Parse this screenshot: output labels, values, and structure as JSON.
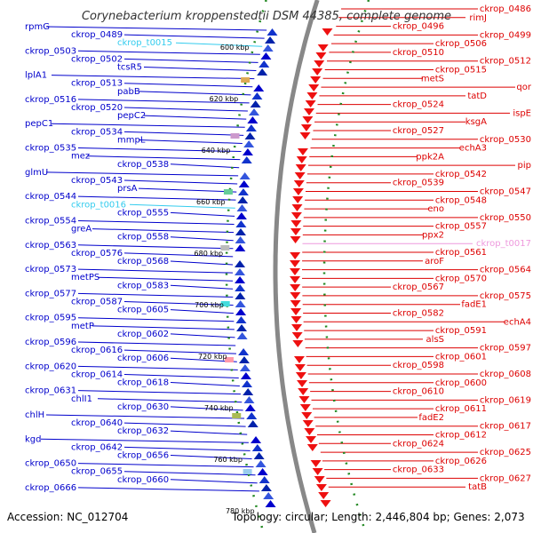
{
  "title": "Corynebacterium kroppenstedtii DSM 44385, complete genome",
  "footer": {
    "accession": "Accession: NC_012704",
    "topology": "Topology: circular; Length: 2,446,804 bp; Genes: 2,073"
  },
  "colors": {
    "forward_genes": "#0000cc",
    "reverse_genes": "#dd0000",
    "trna_forward": "#33ccee",
    "trna_reverse": "#ee99dd",
    "backbone": "#888888",
    "tick": "#228822"
  },
  "ticks": [
    "600 kbp",
    "620 kbp",
    "640 kbp",
    "660 kbp",
    "680 kbp",
    "700 kbp",
    "720 kbp",
    "740 kbp",
    "760 kbp",
    "780 kbp"
  ],
  "left_labels": [
    "rpmG",
    "ckrop_0489",
    "ckrop_t0015",
    "ckrop_0503",
    "ckrop_0502",
    "tcsR5",
    "lplA1",
    "ckrop_0513",
    "pabB",
    "ckrop_0516",
    "ckrop_0520",
    "pepC2",
    "pepC1",
    "ckrop_0534",
    "mmpL",
    "ckrop_0535",
    "mez",
    "ckrop_0538",
    "glmU",
    "ckrop_0543",
    "prsA",
    "ckrop_0544",
    "ckrop_t0016",
    "ckrop_0555",
    "ckrop_0554",
    "greA",
    "ckrop_0558",
    "ckrop_0563",
    "ckrop_0576",
    "ckrop_0568",
    "ckrop_0573",
    "metPS",
    "ckrop_0583",
    "ckrop_0577",
    "ckrop_0587",
    "ckrop_0605",
    "ckrop_0595",
    "metP",
    "ckrop_0602",
    "ckrop_0596",
    "ckrop_0616",
    "ckrop_0606",
    "ckrop_0620",
    "ckrop_0614",
    "ckrop_0618",
    "ckrop_0631",
    "chlI1",
    "ckrop_0630",
    "chlH",
    "ckrop_0640",
    "ckrop_0632",
    "kgd",
    "ckrop_0642",
    "ckrop_0656",
    "ckrop_0650",
    "ckrop_0655",
    "ckrop_0660",
    "ckrop_0666"
  ],
  "right_labels": [
    "ckrop_0486",
    "rimJ",
    "ckrop_0496",
    "ckrop_0499",
    "ckrop_0506",
    "ckrop_0510",
    "ckrop_0512",
    "ckrop_0515",
    "metS",
    "qor",
    "tatD",
    "ckrop_0524",
    "ispE",
    "ksgA",
    "ckrop_0527",
    "ckrop_0530",
    "echA3",
    "ppk2A",
    "pip",
    "ckrop_0542",
    "ckrop_0539",
    "ckrop_0547",
    "ckrop_0548",
    "eno",
    "ckrop_0550",
    "ckrop_0557",
    "ppx2",
    "ckrop_t0017",
    "ckrop_0561",
    "aroF",
    "ckrop_0564",
    "ckrop_0570",
    "ckrop_0567",
    "ckrop_0575",
    "fadE1",
    "ckrop_0582",
    "echA4",
    "ckrop_0591",
    "alsS",
    "ckrop_0597",
    "ckrop_0601",
    "ckrop_0598",
    "ckrop_0608",
    "ckrop_0600",
    "ckrop_0610",
    "ckrop_0619",
    "ckrop_0611",
    "fadE2",
    "ckrop_0617",
    "ckrop_0612",
    "ckrop_0624",
    "ckrop_0625",
    "ckrop_0626",
    "ckrop_0633",
    "ckrop_0627",
    "tatB"
  ]
}
